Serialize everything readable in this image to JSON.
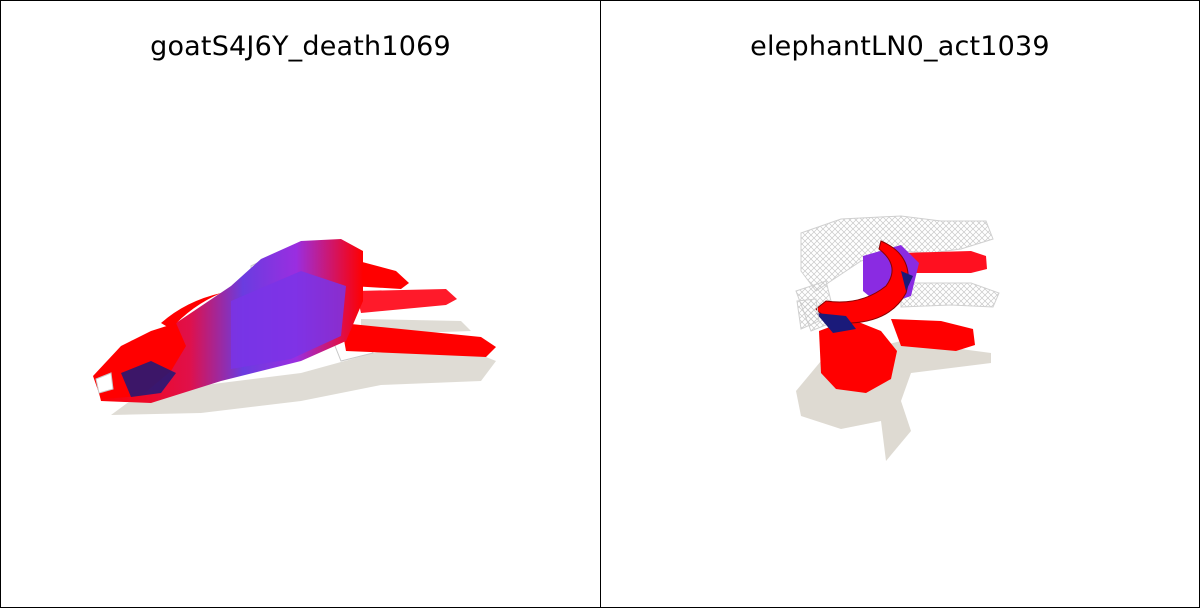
{
  "panels": [
    {
      "title": "goatS4J6Y_death1069",
      "subject": "goat"
    },
    {
      "title": "elephantLN0_act1039",
      "subject": "elephant"
    }
  ],
  "colors": {
    "mesh_red": "#ff0000",
    "mesh_purple": "#8a2be2",
    "mesh_blue": "#3050d8",
    "mesh_navy": "#1a1a7a",
    "wireframe": "#c8c8c8",
    "shadow": "#dcd8d0",
    "border": "#000000"
  }
}
